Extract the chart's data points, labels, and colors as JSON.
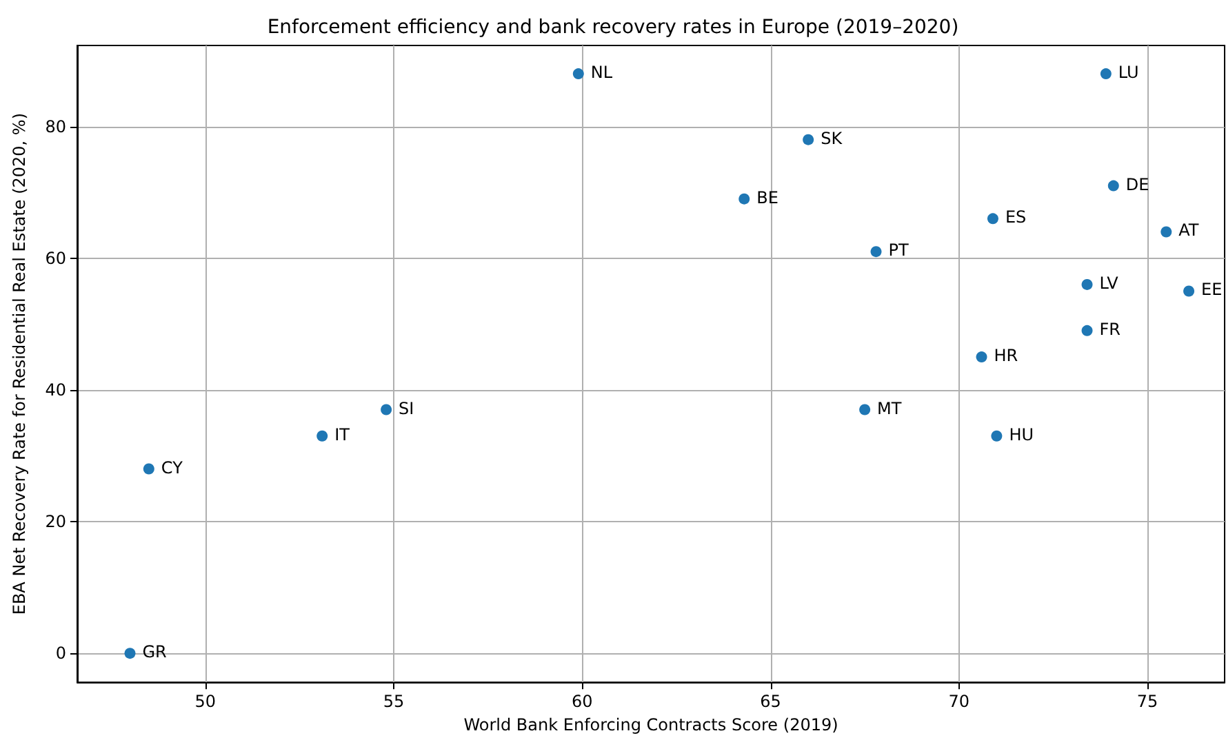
{
  "chart_data": {
    "type": "scatter",
    "title": "Enforcement efficiency and bank recovery rates in Europe (2019–2020)",
    "xlabel": "World Bank Enforcing Contracts Score (2019)",
    "ylabel": "EBA Net Recovery Rate for Residential Real Estate (2020, %)",
    "x": [
      48.0,
      48.5,
      53.1,
      54.8,
      59.9,
      64.3,
      66.0,
      67.8,
      67.5,
      70.9,
      70.6,
      71.0,
      73.9,
      74.1,
      73.4,
      73.4,
      75.5,
      76.1
    ],
    "series": [
      {
        "color": "#1f77b4",
        "values": [
          0,
          28,
          33,
          37,
          88,
          69,
          78,
          61,
          37,
          66,
          45,
          33,
          88,
          71,
          56,
          49,
          64,
          55
        ]
      }
    ],
    "annotations": [
      {
        "text": "GR",
        "x": 48.0,
        "y": 0
      },
      {
        "text": "CY",
        "x": 48.5,
        "y": 28
      },
      {
        "text": "IT",
        "x": 53.1,
        "y": 33
      },
      {
        "text": "SI",
        "x": 54.8,
        "y": 37
      },
      {
        "text": "NL",
        "x": 59.9,
        "y": 88
      },
      {
        "text": "BE",
        "x": 64.3,
        "y": 69
      },
      {
        "text": "SK",
        "x": 66.0,
        "y": 78
      },
      {
        "text": "PT",
        "x": 67.8,
        "y": 61
      },
      {
        "text": "MT",
        "x": 67.5,
        "y": 37
      },
      {
        "text": "ES",
        "x": 70.9,
        "y": 66
      },
      {
        "text": "HR",
        "x": 70.6,
        "y": 45
      },
      {
        "text": "HU",
        "x": 71.0,
        "y": 33
      },
      {
        "text": "LU",
        "x": 73.9,
        "y": 88
      },
      {
        "text": "DE",
        "x": 74.1,
        "y": 71
      },
      {
        "text": "LV",
        "x": 73.4,
        "y": 56
      },
      {
        "text": "FR",
        "x": 73.4,
        "y": 49
      },
      {
        "text": "AT",
        "x": 75.5,
        "y": 64
      },
      {
        "text": "EE",
        "x": 76.1,
        "y": 55
      }
    ],
    "xlim": [
      46.6,
      77.05
    ],
    "xticks": [
      50,
      55,
      60,
      65,
      70,
      75
    ],
    "ylim": [
      -4.4,
      92.3
    ],
    "yticks": [
      0,
      20,
      40,
      60,
      80
    ],
    "grid": true,
    "marker": "circle"
  }
}
